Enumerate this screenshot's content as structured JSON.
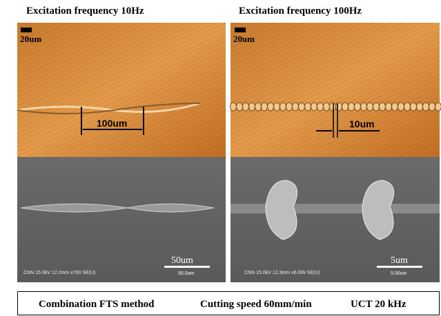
{
  "panels": [
    {
      "title": "Excitation frequency 10Hz",
      "optical_scale": "20um",
      "optical_measure": "100um",
      "sem_info": "CNN 15.0kV 12.2mm x700 SE(U)",
      "sem_scale": "50um",
      "sem_scale_small": "50.0um"
    },
    {
      "title": "Excitation frequency 100Hz",
      "optical_scale": "20um",
      "optical_measure": "10um",
      "sem_info": "CNN 15.0kV 12.3mm x6.00k SE(U)",
      "sem_scale": "5um",
      "sem_scale_small": "5.00um"
    }
  ],
  "footer": {
    "items": [
      "Combination FTS method",
      "Cutting speed 60mm/min",
      "UCT 20 kHz"
    ]
  }
}
